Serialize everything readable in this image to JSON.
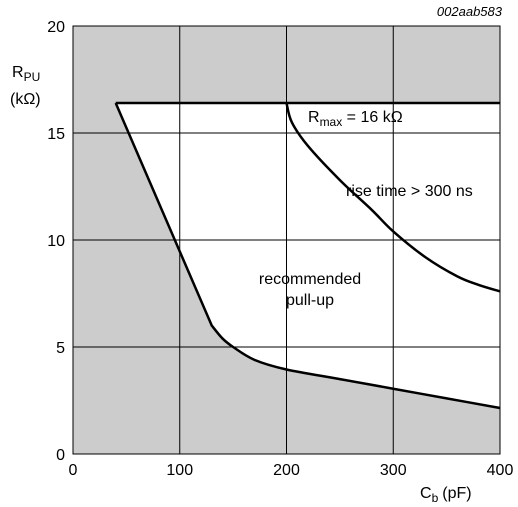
{
  "figure_id": "002aab583",
  "chart_data": {
    "type": "area",
    "ylabel_main": "R",
    "ylabel_sub": "PU",
    "yunit": "(kΩ)",
    "xlabel_main": "C",
    "xlabel_sub": "b",
    "xunit": "(pF)",
    "xlim": [
      0,
      400
    ],
    "ylim": [
      0,
      20
    ],
    "xticks": [
      0,
      100,
      200,
      300,
      400
    ],
    "yticks": [
      0,
      5,
      10,
      15,
      20
    ],
    "grid": true,
    "colors": {
      "shaded": "#cccccc",
      "allowed": "#ffffff",
      "line": "#000000"
    },
    "series": [
      {
        "id": "rmax",
        "x": [
          40,
          400
        ],
        "y": [
          16.4,
          16.4
        ]
      },
      {
        "id": "min_pullup",
        "x": [
          40,
          70,
          100,
          130,
          140,
          150,
          170,
          200,
          250,
          300,
          350,
          400
        ],
        "y": [
          16.4,
          13.0,
          9.5,
          6.0,
          5.4,
          5.0,
          4.4,
          3.95,
          3.5,
          3.05,
          2.6,
          2.15
        ]
      },
      {
        "id": "rise_time",
        "x": [
          200,
          205,
          220,
          250,
          280,
          300,
          330,
          360,
          380,
          400
        ],
        "y": [
          16.4,
          15.5,
          14.4,
          12.8,
          11.4,
          10.4,
          9.2,
          8.3,
          7.9,
          7.6
        ]
      }
    ],
    "annotations": {
      "rmax_main": "R",
      "rmax_sub": "max",
      "rmax_rest": " = 16 kΩ",
      "rise_time": "rise time > 300 ns",
      "recommended_line1": "recommended",
      "recommended_line2": "pull-up"
    }
  }
}
